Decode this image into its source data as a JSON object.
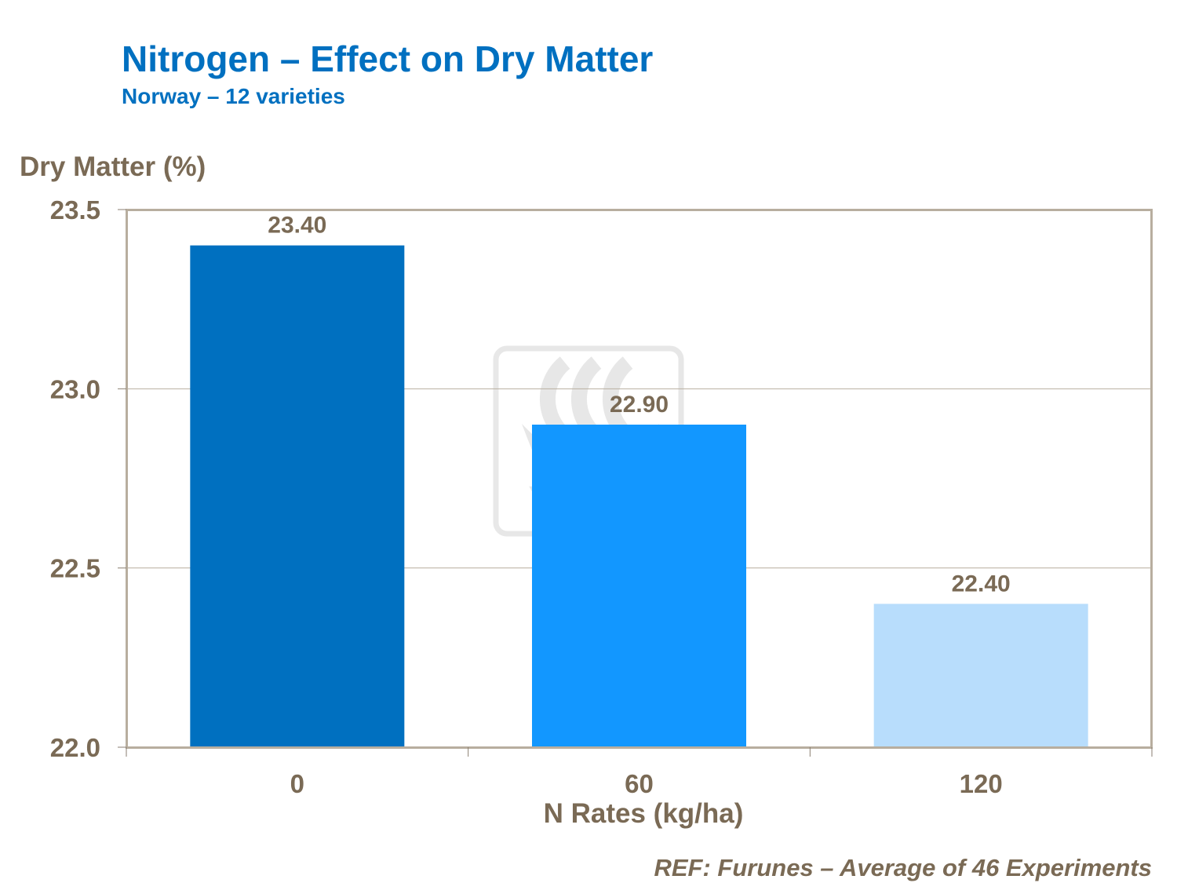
{
  "chart_data": {
    "type": "bar",
    "title": "Nitrogen – Effect on Dry Matter",
    "subtitle": "Norway – 12 varieties",
    "xlabel": "N Rates (kg/ha)",
    "ylabel": "Dry Matter (%)",
    "categories": [
      "0",
      "60",
      "120"
    ],
    "values": [
      23.4,
      22.9,
      22.4
    ],
    "data_labels": [
      "23.40",
      "22.90",
      "22.40"
    ],
    "bar_colors": [
      "#0070c0",
      "#1297ff",
      "#b8ddfc"
    ],
    "ylim": [
      22.0,
      23.5
    ],
    "yticks": [
      "22.0",
      "22.5",
      "23.0",
      "23.5"
    ],
    "grid": true,
    "legend": "none",
    "source_note": "REF: Furunes – Average of 46 Experiments"
  },
  "watermark": {
    "logo_text": "YARA"
  },
  "colors": {
    "title": "#0070c0",
    "text": "#7a6a55",
    "frame": "#b8ae9f",
    "grid": "#b8ae9f"
  }
}
